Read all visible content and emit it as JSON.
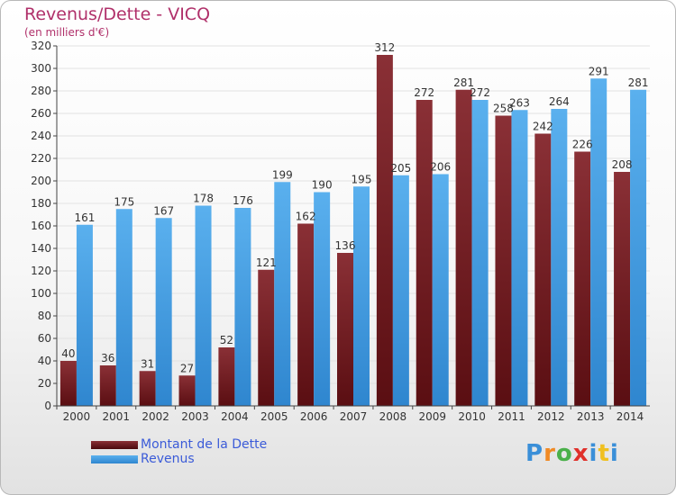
{
  "chart_data": {
    "type": "bar",
    "title": "Revenus/Dette - VICQ",
    "subtitle": "(en milliers d'€)",
    "categories": [
      "2000",
      "2001",
      "2002",
      "2003",
      "2004",
      "2005",
      "2006",
      "2007",
      "2008",
      "2009",
      "2010",
      "2011",
      "2012",
      "2013",
      "2014"
    ],
    "series": [
      {
        "name": "Montant de la Dette",
        "color": "#7a1f24",
        "values": [
          40,
          36,
          31,
          27,
          52,
          121,
          162,
          136,
          312,
          272,
          281,
          258,
          242,
          226,
          208
        ]
      },
      {
        "name": "Revenus",
        "color": "#4ea6e8",
        "values": [
          161,
          175,
          167,
          178,
          176,
          199,
          190,
          195,
          205,
          206,
          272,
          263,
          264,
          291,
          281
        ]
      }
    ],
    "ylim": [
      0,
      320
    ],
    "yticks": [
      0,
      20,
      40,
      60,
      80,
      100,
      120,
      140,
      160,
      180,
      200,
      220,
      240,
      260,
      280,
      300,
      320
    ],
    "grid": true,
    "legend_position": "bottom-left"
  },
  "branding": {
    "logo_letters": [
      "P",
      "r",
      "o",
      "x",
      "i",
      "t",
      "i"
    ],
    "logo_colors": [
      "#3a8fd8",
      "#f08a24",
      "#4ab04a",
      "#e0302a",
      "#3a8fd8",
      "#f0c020",
      "#3a8fd8"
    ]
  }
}
